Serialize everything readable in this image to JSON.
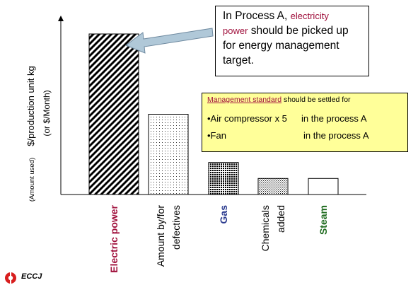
{
  "chart_data": {
    "type": "bar",
    "ylabel_line1": "$/production unit kg",
    "ylabel_line2": "(or $/Month)",
    "ylabel_note": "(Amount used)",
    "categories": [
      {
        "lines": [
          "Electric power"
        ],
        "color": "#a0103c",
        "bold": true
      },
      {
        "lines": [
          "Amount by/for",
          "defectives"
        ],
        "color": "#000000",
        "bold": false
      },
      {
        "lines": [
          "Gas"
        ],
        "color": "#2b3b8f",
        "bold": true
      },
      {
        "lines": [
          "Chemicals",
          "added"
        ],
        "color": "#000000",
        "bold": false
      },
      {
        "lines": [
          "Steam"
        ],
        "color": "#1e6b1e",
        "bold": true
      }
    ],
    "values": [
      100,
      50,
      20,
      10,
      10
    ],
    "patterns": [
      "diagonal-hatch",
      "fine-dots",
      "crosshatch",
      "dense-dots",
      "blank"
    ],
    "ylim": [
      0,
      100
    ],
    "grid": false
  },
  "callout": {
    "pre": "In Process A, ",
    "highlight1": "electricity",
    "highlight2": "power",
    "post": " should be picked up for energy management target."
  },
  "standard": {
    "title_underlined": "Management standard",
    "title_rest": " should be settled for",
    "rows": [
      {
        "item": "•Air compressor x 5",
        "location": "in the process A"
      },
      {
        "item": "•Fan",
        "location": "in the process A"
      }
    ]
  },
  "logo": {
    "text": "ECCJ",
    "color": "#d81e1e"
  }
}
